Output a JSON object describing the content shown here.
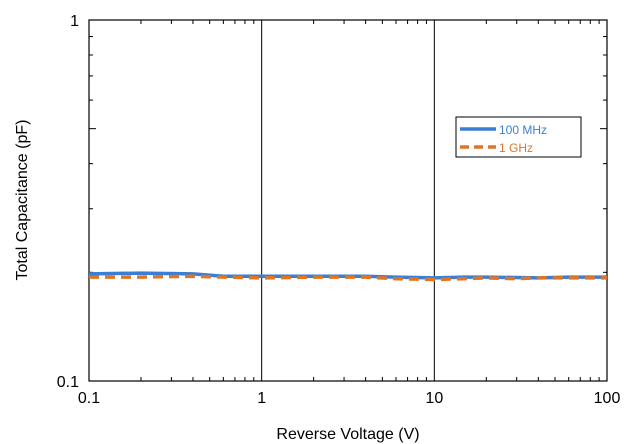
{
  "chart_data": {
    "type": "line",
    "xlabel": "Reverse Voltage (V)",
    "ylabel": "Total Capacitance (pF)",
    "xscale": "log",
    "yscale": "log",
    "xlim": [
      0.1,
      100
    ],
    "ylim": [
      0.1,
      1
    ],
    "x_ticks": [
      "0.1",
      "1",
      "10",
      "100"
    ],
    "y_ticks": [
      "0.1",
      "1"
    ],
    "grid": "vertical lines at decades",
    "legend_position": "right, upper-middle",
    "series": [
      {
        "name": "100 MHz",
        "color": "#3a7fd5",
        "style": "solid",
        "x": [
          0.1,
          0.2,
          0.4,
          0.6,
          1,
          2,
          4,
          6,
          10,
          15,
          20,
          40,
          60,
          100
        ],
        "y": [
          0.198,
          0.199,
          0.198,
          0.195,
          0.195,
          0.195,
          0.195,
          0.194,
          0.193,
          0.194,
          0.194,
          0.193,
          0.194,
          0.194
        ]
      },
      {
        "name": "1 GHz",
        "color": "#e07526",
        "style": "dashed",
        "x": [
          0.1,
          0.2,
          0.4,
          0.6,
          1,
          2,
          4,
          6,
          10,
          15,
          20,
          30,
          40,
          60,
          100
        ],
        "y": [
          0.194,
          0.194,
          0.195,
          0.194,
          0.193,
          0.194,
          0.194,
          0.192,
          0.191,
          0.192,
          0.193,
          0.192,
          0.193,
          0.193,
          0.193
        ]
      }
    ]
  }
}
